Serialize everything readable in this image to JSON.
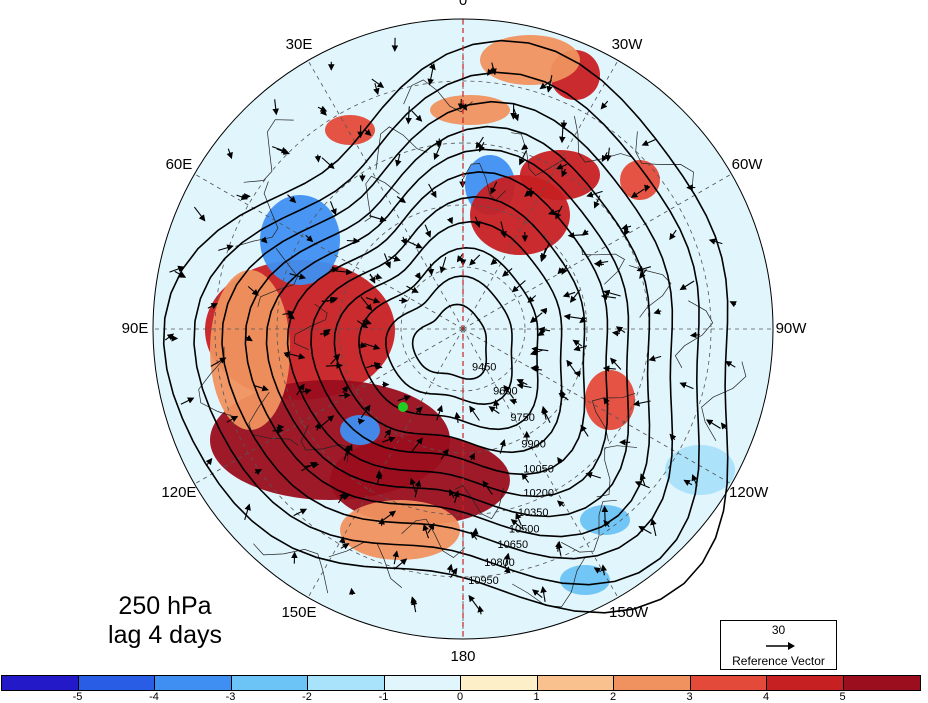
{
  "figure": {
    "title_line1": "250 hPa",
    "title_line2": "lag 4 days",
    "reference_vector": {
      "magnitude": "30",
      "label": "Reference Vector"
    }
  },
  "longitude_labels": [
    "0",
    "30W",
    "60W",
    "90W",
    "120W",
    "150W",
    "180",
    "150E",
    "120E",
    "90E",
    "60E",
    "30E"
  ],
  "contour_labels": [
    "9450",
    "9600",
    "9750",
    "9900",
    "10050",
    "10200",
    "10350",
    "10500",
    "10650",
    "10800",
    "10950"
  ],
  "colorbar": {
    "ticks": [
      "-5",
      "-4",
      "-3",
      "-2",
      "-1",
      "0",
      "1",
      "2",
      "3",
      "4",
      "5"
    ],
    "colors": [
      "#2419c8",
      "#2a5de6",
      "#3f8ff2",
      "#6cc3f5",
      "#a9e2fb",
      "#e0f5fc",
      "#fdf0c8",
      "#f8c18d",
      "#f0925f",
      "#e44a3a",
      "#c72023",
      "#9b0e1d"
    ]
  }
}
